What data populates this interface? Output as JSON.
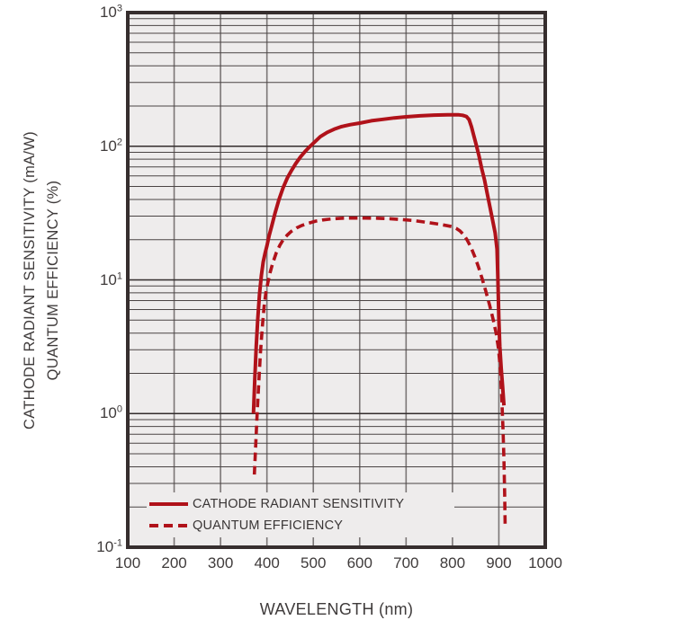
{
  "figure": {
    "ylabel_line1": "CATHODE RADIANT SENSITIVITY (mA/W)",
    "ylabel_line2": "QUANTUM EFFICIENCY (%)",
    "xlabel": "WAVELENGTH (nm)"
  },
  "colors": {
    "curve_red": "#b0121a",
    "plot_background": "#eeecec",
    "plot_border": "#362e2e",
    "grid_minor_horizontal": "#4a4444",
    "grid_major_horizontal": "#332d2d",
    "grid_vertical": "#7b7676",
    "text": "#3f3b3b"
  },
  "chart_data": {
    "type": "line",
    "title": "",
    "xlabel": "WAVELENGTH (nm)",
    "ylabel": "CATHODE RADIANT SENSITIVITY (mA/W) / QUANTUM EFFICIENCY (%)",
    "x_scale": "linear",
    "y_scale": "log",
    "xlim": [
      100,
      1000
    ],
    "ylim": [
      0.1,
      1000
    ],
    "grid": true,
    "legend_position": "inside-bottom-left",
    "x_ticks": [
      100,
      200,
      300,
      400,
      500,
      600,
      700,
      800,
      900,
      1000
    ],
    "y_ticks": [
      {
        "value": 1000,
        "base": "10",
        "exp": "3"
      },
      {
        "value": 100,
        "base": "10",
        "exp": "2"
      },
      {
        "value": 10,
        "base": "10",
        "exp": "1"
      },
      {
        "value": 1,
        "base": "10",
        "exp": "0"
      },
      {
        "value": 0.1,
        "base": "10",
        "exp": "-1"
      }
    ],
    "series": [
      {
        "name": "CATHODE RADIANT SENSITIVITY",
        "unit": "mA/W",
        "style": "solid",
        "color": "#b0121a",
        "points": [
          [
            371,
            1.0
          ],
          [
            374,
            1.9
          ],
          [
            377,
            3.2
          ],
          [
            380,
            5.0
          ],
          [
            384,
            7.8
          ],
          [
            388,
            10.8
          ],
          [
            392,
            13.6
          ],
          [
            396,
            15.8
          ],
          [
            400,
            18
          ],
          [
            405,
            21.5
          ],
          [
            410,
            25
          ],
          [
            418,
            32
          ],
          [
            426,
            40
          ],
          [
            435,
            49
          ],
          [
            444,
            58
          ],
          [
            452,
            65
          ],
          [
            462,
            74
          ],
          [
            472,
            83
          ],
          [
            482,
            91
          ],
          [
            492,
            99
          ],
          [
            502,
            107
          ],
          [
            515,
            118
          ],
          [
            530,
            127
          ],
          [
            545,
            134
          ],
          [
            560,
            140
          ],
          [
            580,
            145
          ],
          [
            600,
            149
          ],
          [
            625,
            155
          ],
          [
            650,
            159
          ],
          [
            675,
            163
          ],
          [
            700,
            166
          ],
          [
            730,
            169
          ],
          [
            760,
            171
          ],
          [
            790,
            172
          ],
          [
            812,
            172
          ],
          [
            822,
            170.5
          ],
          [
            830,
            167
          ],
          [
            836,
            158
          ],
          [
            841,
            140
          ],
          [
            846,
            120
          ],
          [
            851,
            103
          ],
          [
            857,
            85
          ],
          [
            863,
            68
          ],
          [
            869,
            56
          ],
          [
            875,
            44
          ],
          [
            881,
            35
          ],
          [
            887,
            27.5
          ],
          [
            892,
            22.5
          ],
          [
            896,
            17
          ],
          [
            898,
            10
          ],
          [
            900,
            5.2
          ],
          [
            902,
            3.2
          ],
          [
            905,
            2.2
          ],
          [
            908,
            1.6
          ],
          [
            911,
            1.15
          ]
        ]
      },
      {
        "name": "QUANTUM EFFICIENCY",
        "unit": "%",
        "style": "dashed",
        "color": "#b0121a",
        "points": [
          [
            373,
            0.35
          ],
          [
            376,
            0.6
          ],
          [
            379,
            1.0
          ],
          [
            382,
            1.6
          ],
          [
            386,
            2.8
          ],
          [
            390,
            4.4
          ],
          [
            394,
            6.4
          ],
          [
            398,
            8.1
          ],
          [
            402,
            9.5
          ],
          [
            407,
            11.4
          ],
          [
            412,
            13.2
          ],
          [
            420,
            15.9
          ],
          [
            428,
            18.2
          ],
          [
            436,
            20.2
          ],
          [
            444,
            21.7
          ],
          [
            452,
            23
          ],
          [
            464,
            24.5
          ],
          [
            476,
            25.6
          ],
          [
            490,
            26.6
          ],
          [
            505,
            27.5
          ],
          [
            520,
            28.1
          ],
          [
            540,
            28.6
          ],
          [
            560,
            28.9
          ],
          [
            580,
            29
          ],
          [
            610,
            29
          ],
          [
            640,
            28.9
          ],
          [
            665,
            28.7
          ],
          [
            690,
            28.3
          ],
          [
            715,
            27.8
          ],
          [
            740,
            27.1
          ],
          [
            765,
            26.3
          ],
          [
            785,
            25.6
          ],
          [
            800,
            25
          ],
          [
            808,
            24.3
          ],
          [
            816,
            23.3
          ],
          [
            824,
            21.8
          ],
          [
            832,
            19.8
          ],
          [
            840,
            17.5
          ],
          [
            848,
            15
          ],
          [
            856,
            12.5
          ],
          [
            864,
            10.2
          ],
          [
            872,
            8.2
          ],
          [
            880,
            6.5
          ],
          [
            888,
            5.0
          ],
          [
            894,
            4.0
          ],
          [
            899,
            3.1
          ],
          [
            903,
            2.2
          ],
          [
            906,
            1.4
          ],
          [
            909,
            0.75
          ],
          [
            911,
            0.45
          ],
          [
            912.5,
            0.25
          ],
          [
            913.5,
            0.15
          ]
        ]
      }
    ]
  }
}
